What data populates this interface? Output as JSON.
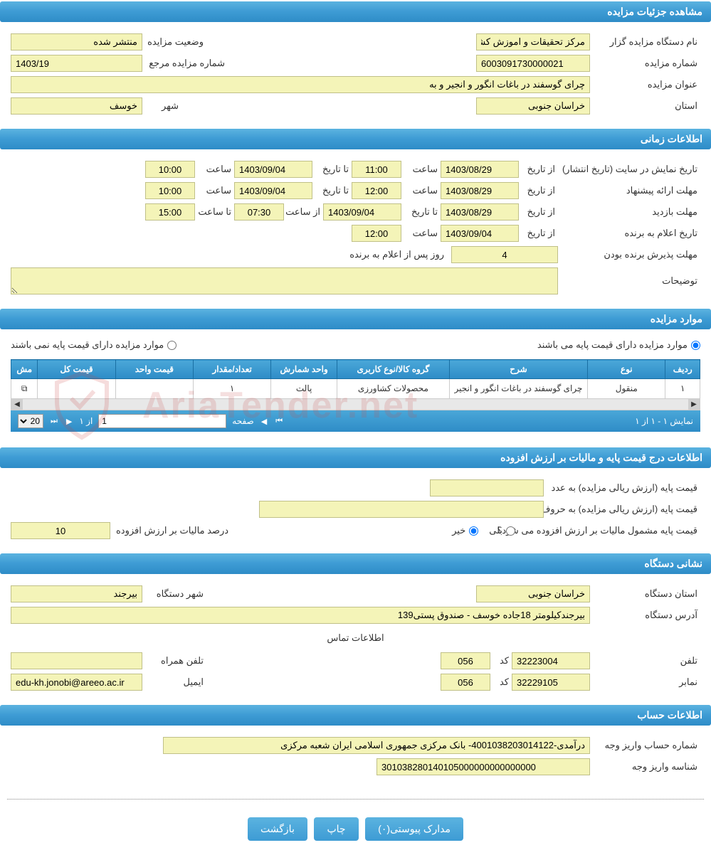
{
  "sections": {
    "details_header": "مشاهده جزئیات مزایده",
    "time_header": "اطلاعات زمانی",
    "items_header": "موارد مزایده",
    "price_tax_header": "اطلاعات درج قیمت پایه و مالیات بر ارزش افزوده",
    "org_address_header": "نشانی دستگاه",
    "account_header": "اطلاعات حساب"
  },
  "details": {
    "org_name_label": "نام دستگاه مزایده گزار",
    "org_name": "مرکز تحقیقات و اموزش کشا",
    "status_label": "وضعیت مزایده",
    "status": "منتشر شده",
    "auction_no_label": "شماره مزایده",
    "auction_no": "6003091730000021",
    "ref_no_label": "شماره مزایده مرجع",
    "ref_no": "1403/19",
    "title_label": "عنوان مزایده",
    "title": "چرای گوسفند در باغات انگور و انجیر و به",
    "province_label": "استان",
    "province": "خراسان جنوبی",
    "city_label": "شهر",
    "city": "خوسف"
  },
  "time": {
    "publish_label": "تاریخ نمایش در سایت (تاریخ انتشار)",
    "from_date_label": "از تاریخ",
    "to_date_label": "تا تاریخ",
    "time_label": "ساعت",
    "from_time_label": "از ساعت",
    "to_time_label": "تا ساعت",
    "publish_from_date": "1403/08/29",
    "publish_from_time": "11:00",
    "publish_to_date": "1403/09/04",
    "publish_to_time": "10:00",
    "offer_label": "مهلت ارائه پیشنهاد",
    "offer_from_date": "1403/08/29",
    "offer_from_time": "12:00",
    "offer_to_date": "1403/09/04",
    "offer_to_time": "10:00",
    "visit_label": "مهلت بازدید",
    "visit_from_date": "1403/08/29",
    "visit_to_date": "1403/09/04",
    "visit_from_time": "07:30",
    "visit_to_time": "15:00",
    "announce_label": "تاریخ اعلام به برنده",
    "announce_date": "1403/09/04",
    "announce_time": "12:00",
    "accept_deadline_label": "مهلت پذیرش برنده بودن",
    "accept_deadline": "4",
    "accept_suffix": "روز پس از اعلام به برنده",
    "notes_label": "توضیحات",
    "notes": ""
  },
  "items": {
    "has_base_label": "موارد مزایده دارای قیمت پایه می باشند",
    "no_base_label": "موارد مزایده دارای قیمت پایه نمی باشند",
    "columns": {
      "row": "ردیف",
      "type": "نوع",
      "desc": "شرح",
      "group": "گروه کالا/نوع کاربری",
      "unit": "واحد شمارش",
      "qty": "تعداد/مقدار",
      "unit_price": "قیمت واحد",
      "total_price": "قیمت کل",
      "more": "مش"
    },
    "rows": [
      {
        "row": "۱",
        "type": "منقول",
        "desc": "چرای گوسفند در باغات انگور و انجیر",
        "group": "محصولات کشاورزی",
        "unit": "پالت",
        "qty": "۱",
        "unit_price": "",
        "total_price": "",
        "more": "⧉"
      }
    ],
    "pager": {
      "summary": "نمایش ۱ - ۱ از ۱",
      "page_label": "صفحه",
      "page_val": "1",
      "of_label": "از ۱",
      "per_page": "20"
    }
  },
  "price_tax": {
    "base_num_label": "قیمت پایه (ارزش ریالی مزایده) به عدد",
    "base_num": "",
    "base_text_label": "قیمت پایه (ارزش ریالی مزایده) به حروف",
    "base_text": "",
    "vat_q_label": "قیمت پایه مشمول مالیات بر ارزش افزوده می شود؟",
    "yes_label": "بلی",
    "no_label": "خیر",
    "vat_pct_label": "درصد مالیات بر ارزش افزوده",
    "vat_pct": "10"
  },
  "org": {
    "province_label": "استان دستگاه",
    "province": "خراسان جنوبی",
    "city_label": "شهر دستگاه",
    "city": "بیرجند",
    "address_label": "آدرس دستگاه",
    "address": "بیرجندکیلومتر 18جاده خوسف - صندوق پستی139",
    "contact_label": "اطلاعات تماس",
    "phone_label": "تلفن",
    "phone": "32223004",
    "code_label": "کد",
    "phone_code": "056",
    "mobile_label": "تلفن همراه",
    "mobile": "",
    "fax_label": "نمابر",
    "fax": "32229105",
    "fax_code": "056",
    "email_label": "ایمیل",
    "email": "edu-kh.jonobi@areeo.ac.ir"
  },
  "account": {
    "acc_no_label": "شماره حساب واریز وجه",
    "acc_no": "درآمدی-4001038203014122- بانک مرکزی جمهوری اسلامی ایران شعبه مرکزی",
    "dep_id_label": "شناسه واریز وجه",
    "dep_id": "301038280140105000000000000000"
  },
  "buttons": {
    "attachments": "مدارک پیوستی(۰)",
    "print": "چاپ",
    "back": "بازگشت"
  },
  "watermark": "AriaTender.net"
}
